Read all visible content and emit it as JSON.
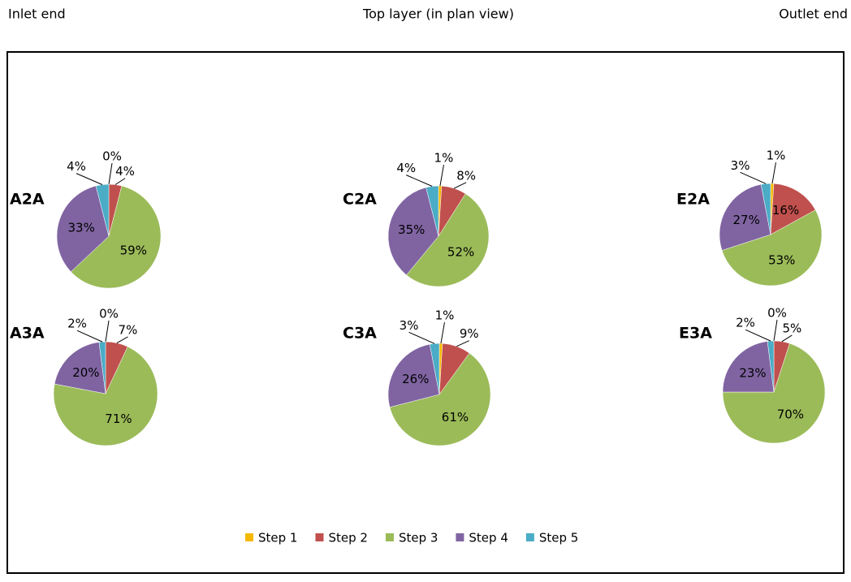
{
  "header": {
    "left": "Inlet end",
    "center": "Top layer (in plan view)",
    "right": "Outlet end"
  },
  "chart_data": [
    {
      "type": "pie",
      "title": "A2A",
      "categories": [
        "Step 1",
        "Step 2",
        "Step 3",
        "Step 4",
        "Step 5"
      ],
      "values": [
        0,
        4,
        59,
        33,
        4
      ],
      "value_labels": [
        "0%",
        "4%",
        "59%",
        "33%",
        "4%"
      ],
      "colors": [
        "#f5b800",
        "#c0504d",
        "#9bbb59",
        "#8064a2",
        "#4bacc6"
      ],
      "legend": "bottom"
    },
    {
      "type": "pie",
      "title": "C2A",
      "categories": [
        "Step 1",
        "Step 2",
        "Step 3",
        "Step 4",
        "Step 5"
      ],
      "values": [
        1,
        8,
        52,
        35,
        4
      ],
      "value_labels": [
        "1%",
        "8%",
        "52%",
        "35%",
        "4%"
      ],
      "colors": [
        "#f5b800",
        "#c0504d",
        "#9bbb59",
        "#8064a2",
        "#4bacc6"
      ],
      "legend": "bottom"
    },
    {
      "type": "pie",
      "title": "E2A",
      "categories": [
        "Step 1",
        "Step 2",
        "Step 3",
        "Step 4",
        "Step 5"
      ],
      "values": [
        1,
        16,
        53,
        27,
        3
      ],
      "value_labels": [
        "1%",
        "16%",
        "53%",
        "27%",
        "3%"
      ],
      "colors": [
        "#f5b800",
        "#c0504d",
        "#9bbb59",
        "#8064a2",
        "#4bacc6"
      ],
      "legend": "bottom"
    },
    {
      "type": "pie",
      "title": "A3A",
      "categories": [
        "Step 1",
        "Step 2",
        "Step 3",
        "Step 4",
        "Step 5"
      ],
      "values": [
        0,
        7,
        71,
        20,
        2
      ],
      "value_labels": [
        "0%",
        "7%",
        "71%",
        "20%",
        "2%"
      ],
      "colors": [
        "#f5b800",
        "#c0504d",
        "#9bbb59",
        "#8064a2",
        "#4bacc6"
      ],
      "legend": "bottom"
    },
    {
      "type": "pie",
      "title": "C3A",
      "categories": [
        "Step 1",
        "Step 2",
        "Step 3",
        "Step 4",
        "Step 5"
      ],
      "values": [
        1,
        9,
        61,
        26,
        3
      ],
      "value_labels": [
        "1%",
        "9%",
        "61%",
        "26%",
        "3%"
      ],
      "colors": [
        "#f5b800",
        "#c0504d",
        "#9bbb59",
        "#8064a2",
        "#4bacc6"
      ],
      "legend": "bottom"
    },
    {
      "type": "pie",
      "title": "E3A",
      "categories": [
        "Step 1",
        "Step 2",
        "Step 3",
        "Step 4",
        "Step 5"
      ],
      "values": [
        0,
        5,
        70,
        23,
        2
      ],
      "value_labels": [
        "0%",
        "5%",
        "70%",
        "23%",
        "2%"
      ],
      "colors": [
        "#f5b800",
        "#c0504d",
        "#9bbb59",
        "#8064a2",
        "#4bacc6"
      ],
      "legend": "bottom"
    }
  ]
}
